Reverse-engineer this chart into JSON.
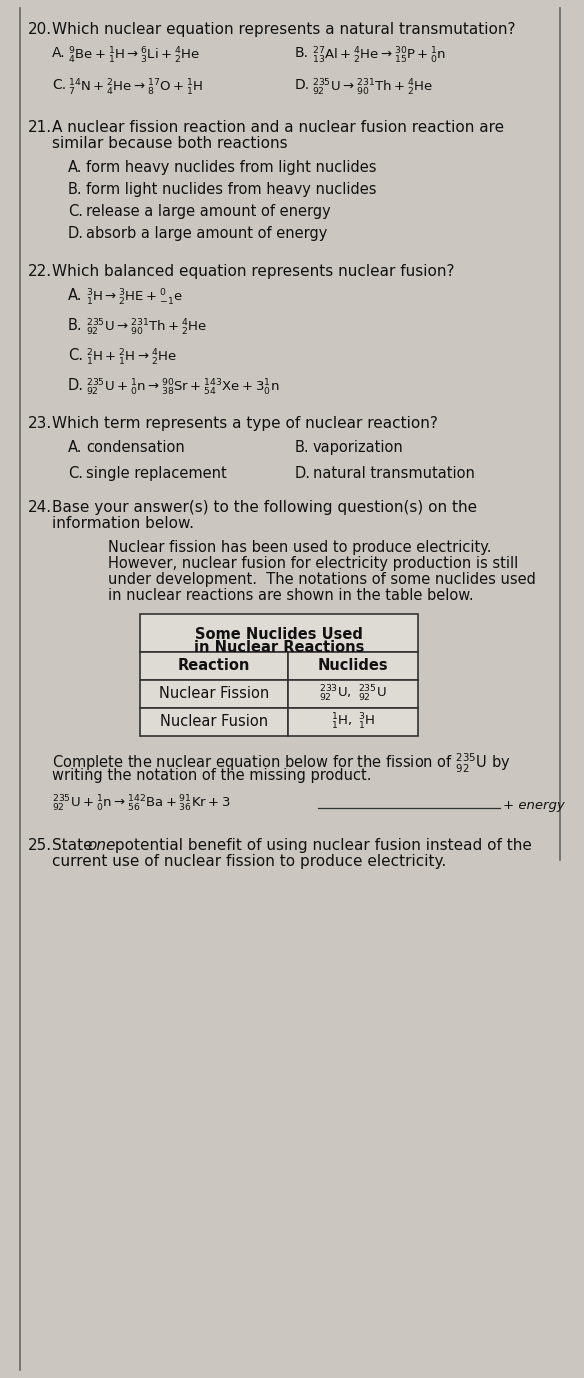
{
  "bg_color": "#cbc7c0",
  "text_color": "#111111",
  "q20_num": "20.",
  "q20_q": "Which nuclear equation represents a natural transmutation?",
  "q20_A": "$^{9}_{4}\\mathrm{Be} + ^{1}_{1}\\mathrm{H} \\rightarrow ^{6}_{3}\\mathrm{Li} + ^{4}_{2}\\mathrm{He}$",
  "q20_B": "$^{27}_{13}\\mathrm{Al} + ^{4}_{2}\\mathrm{He} \\rightarrow ^{30}_{15}\\mathrm{P} + ^{1}_{0}\\mathrm{n}$",
  "q20_C": "$^{14}_{7}\\mathrm{N} + ^{2}_{4}\\mathrm{He} \\rightarrow ^{17}_{8}\\mathrm{O} + ^{1}_{1}\\mathrm{H}$",
  "q20_D": "$^{235}_{92}\\mathrm{U} \\rightarrow ^{231}_{90}\\mathrm{Th} + ^{4}_{2}\\mathrm{He}$",
  "q21_num": "21.",
  "q21_q1": "A nuclear fission reaction and a nuclear fusion reaction are",
  "q21_q2": "similar because both reactions",
  "q21_A": "form heavy nuclides from light nuclides",
  "q21_B": "form light nuclides from heavy nuclides",
  "q21_C": "release a large amount of energy",
  "q21_D": "absorb a large amount of energy",
  "q22_num": "22.",
  "q22_q": "Which balanced equation represents nuclear fusion?",
  "q22_A": "$^{3}_{1}\\mathrm{H} \\rightarrow ^{3}_{2}\\mathrm{HE} + ^{0}_{-1}\\mathrm{e}$",
  "q22_B": "$^{235}_{92}\\mathrm{U} \\rightarrow ^{231}_{90}\\mathrm{Th} + ^{4}_{2}\\mathrm{He}$",
  "q22_C": "$^{2}_{1}\\mathrm{H} + ^{2}_{1}\\mathrm{H} \\rightarrow ^{4}_{2}\\mathrm{He}$",
  "q22_D": "$^{235}_{92}\\mathrm{U} + ^{1}_{0}\\mathrm{n} \\rightarrow ^{90}_{38}\\mathrm{Sr} + ^{143}_{54}\\mathrm{Xe} + 3^{1}_{0}\\mathrm{n}$",
  "q23_num": "23.",
  "q23_q": "Which term represents a type of nuclear reaction?",
  "q23_A": "condensation",
  "q23_B": "vaporization",
  "q23_C": "single replacement",
  "q23_D": "natural transmutation",
  "q24_num": "24.",
  "q24_q1": "Base your answer(s) to the following question(s) on the",
  "q24_q2": "information below.",
  "q24_p1": "Nuclear fission has been used to produce electricity.",
  "q24_p2": "However, nuclear fusion for electricity production is still",
  "q24_p3": "under development.  The notations of some nuclides used",
  "q24_p4": "in nuclear reactions are shown in the table below.",
  "tbl_title1": "Some Nuclides Used",
  "tbl_title2": "in Nuclear Reactions",
  "tbl_h1": "Reaction",
  "tbl_h2": "Nuclides",
  "tbl_r1c1": "Nuclear Fission",
  "tbl_r1c2": "$^{233}_{92}\\mathrm{U},\\ ^{235}_{92}\\mathrm{U}$",
  "tbl_r2c1": "Nuclear Fusion",
  "tbl_r2c2": "$^{1}_{1}\\mathrm{H},\\ ^{3}_{1}\\mathrm{H}$",
  "q24_c1": "Complete the nuclear equation below for the fission of $^{235}_{92}\\mathrm{U}$ by",
  "q24_c2": "writing the notation of the missing product.",
  "q24_eq": "$^{235}_{92}\\mathrm{U} + ^{1}_{0}\\mathrm{n} \\rightarrow ^{142}_{56}\\mathrm{Ba} + ^{91}_{36}\\mathrm{Kr} + 3$",
  "q24_energy": "+ energy",
  "q25_num": "25.",
  "q25_q1": "State one potential benefit of using nuclear fusion instead of the",
  "q25_q2": "current use of nuclear fission to produce electricity."
}
